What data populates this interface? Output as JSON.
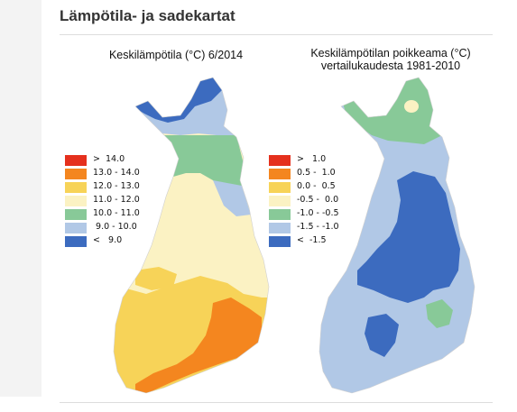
{
  "page": {
    "title": "Lämpötila- ja sadekartat"
  },
  "colors": {
    "red": "#e5301d",
    "orange": "#f4861f",
    "yellow": "#f7d358",
    "cream": "#fbf2c3",
    "green": "#88c998",
    "lightblue": "#b1c8e6",
    "blue": "#3c6bbf"
  },
  "map_left": {
    "title": "Keskilämpötila (°C) 6/2014",
    "legend": [
      {
        "label": ">  14.0",
        "color": "#e5301d"
      },
      {
        "label": "13.0 - 14.0",
        "color": "#f4861f"
      },
      {
        "label": "12.0 - 13.0",
        "color": "#f7d358"
      },
      {
        "label": "11.0 - 12.0",
        "color": "#fbf2c3"
      },
      {
        "label": "10.0 - 11.0",
        "color": "#88c998"
      },
      {
        "label": " 9.0 - 10.0",
        "color": "#b1c8e6"
      },
      {
        "label": "<   9.0",
        "color": "#3c6bbf"
      }
    ]
  },
  "map_right": {
    "title_line1": "Keskilämpötilan poikkeama (°C)",
    "title_line2": "vertailukaudesta 1981-2010",
    "legend": [
      {
        "label": ">   1.0",
        "color": "#e5301d"
      },
      {
        "label": "0.5 -  1.0",
        "color": "#f4861f"
      },
      {
        "label": "0.0 -  0.5",
        "color": "#f7d358"
      },
      {
        "label": "-0.5 -  0.0",
        "color": "#fbf2c3"
      },
      {
        "label": "-1.0 - -0.5",
        "color": "#88c998"
      },
      {
        "label": "-1.5 - -1.0",
        "color": "#b1c8e6"
      },
      {
        "label": "<  -1.5",
        "color": "#3c6bbf"
      }
    ]
  }
}
